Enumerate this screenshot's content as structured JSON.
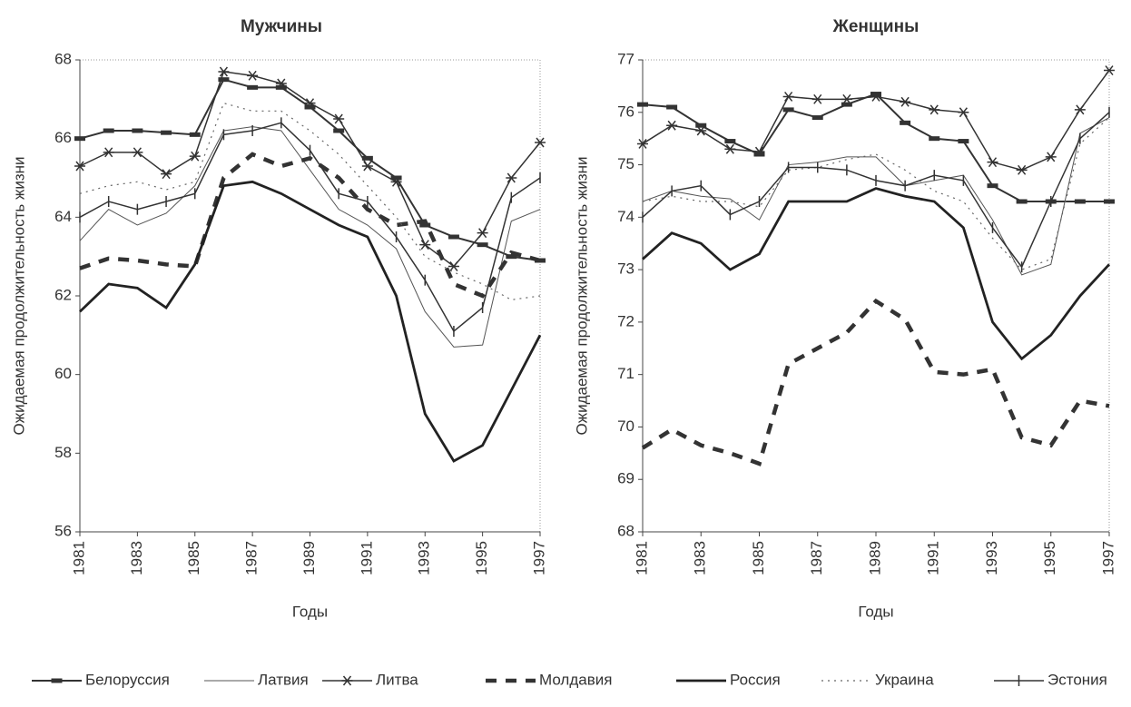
{
  "chart_data": [
    {
      "type": "line",
      "title": "Мужчины",
      "x_label": "Годы",
      "y_label": "Ожидаемая продолжительность жизни",
      "x": [
        1981,
        1982,
        1983,
        1984,
        1985,
        1986,
        1987,
        1988,
        1989,
        1990,
        1991,
        1992,
        1993,
        1994,
        1995,
        1996,
        1997
      ],
      "xlim": [
        1981,
        1997
      ],
      "xticks": [
        1981,
        1983,
        1985,
        1987,
        1989,
        1991,
        1993,
        1995,
        1997
      ],
      "ylim": [
        56,
        68
      ],
      "yticks": [
        56,
        58,
        60,
        62,
        64,
        66,
        68
      ],
      "series": [
        {
          "name": "Белоруссия",
          "color": "#333333",
          "style": "bars",
          "values": [
            66.0,
            66.2,
            66.2,
            66.15,
            66.1,
            67.5,
            67.3,
            67.3,
            66.8,
            66.2,
            65.5,
            65.0,
            63.8,
            63.5,
            63.3,
            63.0,
            62.9
          ]
        },
        {
          "name": "Латвия",
          "color": "#555555",
          "style": "thin",
          "values": [
            63.4,
            64.2,
            63.8,
            64.1,
            64.8,
            66.2,
            66.3,
            66.2,
            65.2,
            64.2,
            63.8,
            63.2,
            61.6,
            60.7,
            60.75,
            63.9,
            64.2
          ]
        },
        {
          "name": "Литва",
          "color": "#333333",
          "style": "star",
          "values": [
            65.3,
            65.65,
            65.65,
            65.1,
            65.55,
            67.7,
            67.6,
            67.4,
            66.9,
            66.5,
            65.3,
            64.9,
            63.3,
            62.75,
            63.6,
            65.0,
            65.9
          ]
        },
        {
          "name": "Молдавия",
          "color": "#333333",
          "style": "dash",
          "values": [
            62.7,
            62.95,
            62.9,
            62.8,
            62.75,
            65.0,
            65.6,
            65.3,
            65.5,
            65.0,
            64.2,
            63.8,
            63.9,
            62.3,
            62.0,
            63.1,
            62.9
          ]
        },
        {
          "name": "Россия",
          "color": "#222222",
          "style": "thick",
          "values": [
            61.6,
            62.3,
            62.2,
            61.7,
            62.8,
            64.8,
            64.9,
            64.6,
            64.2,
            63.8,
            63.5,
            62.0,
            59.0,
            57.8,
            58.2,
            59.6,
            61.0
          ]
        },
        {
          "name": "Украина",
          "color": "#666666",
          "style": "dot",
          "values": [
            64.6,
            64.8,
            64.9,
            64.7,
            64.9,
            66.9,
            66.7,
            66.7,
            66.2,
            65.6,
            64.8,
            64.0,
            63.0,
            62.6,
            62.3,
            61.9,
            62.0
          ]
        },
        {
          "name": "Эстония",
          "color": "#333333",
          "style": "plus",
          "values": [
            64.0,
            64.4,
            64.2,
            64.4,
            64.6,
            66.1,
            66.2,
            66.4,
            65.7,
            64.6,
            64.4,
            63.5,
            62.4,
            61.1,
            61.7,
            64.5,
            65.0
          ]
        }
      ]
    },
    {
      "type": "line",
      "title": "Женщины",
      "x_label": "Годы",
      "y_label": "Ожидаемая продолжительность жизни",
      "x": [
        1981,
        1982,
        1983,
        1984,
        1985,
        1986,
        1987,
        1988,
        1989,
        1990,
        1991,
        1992,
        1993,
        1994,
        1995,
        1996,
        1997
      ],
      "xlim": [
        1981,
        1997
      ],
      "xticks": [
        1981,
        1983,
        1985,
        1987,
        1989,
        1991,
        1993,
        1995,
        1997
      ],
      "ylim": [
        68,
        77
      ],
      "yticks": [
        68,
        69,
        70,
        71,
        72,
        73,
        74,
        75,
        76,
        77
      ],
      "series": [
        {
          "color": "#333333",
          "style": "bars",
          "values": [
            76.15,
            76.1,
            75.75,
            75.45,
            75.2,
            76.05,
            75.9,
            76.15,
            76.35,
            75.8,
            75.5,
            75.45,
            74.6,
            74.3,
            74.3,
            74.3,
            74.3
          ]
        },
        {
          "color": "#555555",
          "style": "thin",
          "values": [
            74.3,
            74.5,
            74.4,
            74.35,
            73.95,
            75.0,
            75.05,
            75.15,
            75.15,
            74.6,
            74.7,
            74.8,
            73.95,
            72.9,
            73.1,
            75.6,
            75.9
          ]
        },
        {
          "color": "#333333",
          "style": "star",
          "values": [
            75.4,
            75.75,
            75.65,
            75.3,
            75.25,
            76.3,
            76.25,
            76.25,
            76.3,
            76.2,
            76.05,
            76.0,
            75.05,
            74.9,
            75.15,
            76.05,
            76.8
          ]
        },
        {
          "color": "#333333",
          "style": "dash",
          "values": [
            69.6,
            69.95,
            69.65,
            69.5,
            69.3,
            71.2,
            71.5,
            71.8,
            72.4,
            72.05,
            71.05,
            71.0,
            71.1,
            69.8,
            69.65,
            70.5,
            70.4
          ]
        },
        {
          "color": "#222222",
          "style": "thick",
          "values": [
            73.2,
            73.7,
            73.5,
            73.0,
            73.3,
            74.3,
            74.3,
            74.3,
            74.55,
            74.4,
            74.3,
            73.8,
            72.0,
            71.3,
            71.75,
            72.5,
            73.1
          ]
        },
        {
          "color": "#666666",
          "style": "dot",
          "values": [
            74.3,
            74.4,
            74.3,
            74.3,
            74.2,
            74.9,
            74.95,
            75.1,
            75.2,
            74.9,
            74.5,
            74.3,
            73.6,
            73.0,
            73.2,
            75.4,
            75.9
          ]
        },
        {
          "color": "#333333",
          "style": "plus",
          "values": [
            74.0,
            74.5,
            74.6,
            74.05,
            74.3,
            74.95,
            74.95,
            74.9,
            74.7,
            74.6,
            74.8,
            74.7,
            73.8,
            73.05,
            74.3,
            75.5,
            76.0
          ]
        }
      ]
    }
  ]
}
